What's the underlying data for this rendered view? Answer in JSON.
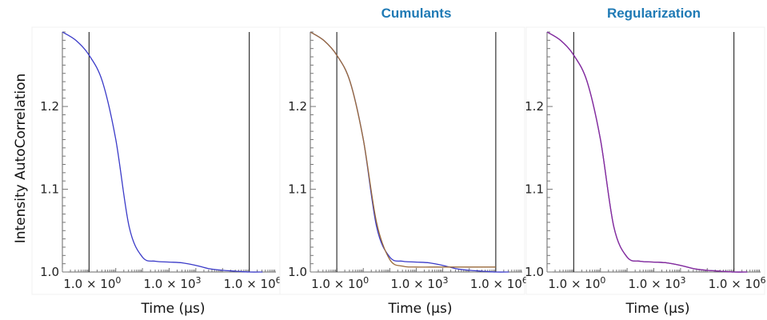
{
  "ylabel": "Intensity AutoCorrelation",
  "colors": {
    "raw": "#3a3ac8",
    "cumulants": "#9a6a3a",
    "regularization": "#8a2a9a",
    "title": "#1f7ab5"
  },
  "chart_data": [
    {
      "type": "line",
      "title": "",
      "xlabel": "Time (µs)",
      "ylabel": "Intensity AutoCorrelation",
      "xscale": "log",
      "xlim": [
        0.1,
        10000000.0
      ],
      "ylim": [
        1.0,
        1.29
      ],
      "yticks": [
        1.0,
        1.1,
        1.2
      ],
      "xticks": [
        1,
        1000,
        1000000
      ],
      "xtick_labels": [
        {
          "base": "1.0 × 10",
          "exp": "0"
        },
        {
          "base": "1.0 × 10",
          "exp": "3"
        },
        {
          "base": "1.0 × 10",
          "exp": "6"
        }
      ],
      "vlines": [
        1.0,
        1000000
      ],
      "series": [
        {
          "role": "raw",
          "x": [
            0.1,
            0.316,
            1,
            3.16,
            10,
            31.6,
            100,
            316,
            1000,
            3160,
            10000,
            31600,
            100000,
            316000,
            1000000,
            3160000
          ],
          "y": [
            1.29,
            1.28,
            1.262,
            1.23,
            1.16,
            1.055,
            1.018,
            1.013,
            1.012,
            1.011,
            1.008,
            1.004,
            1.002,
            1.001,
            1.0,
            1.0
          ]
        }
      ]
    },
    {
      "type": "line",
      "title": "Cumulants",
      "xlabel": "Time (µs)",
      "ylabel": "",
      "xscale": "log",
      "xlim": [
        0.1,
        10000000.0
      ],
      "ylim": [
        1.0,
        1.29
      ],
      "yticks": [
        1.0,
        1.1,
        1.2
      ],
      "xticks": [
        1,
        1000,
        1000000
      ],
      "xtick_labels": [
        {
          "base": "1.0 × 10",
          "exp": "0"
        },
        {
          "base": "1.0 × 10",
          "exp": "3"
        },
        {
          "base": "1.0 × 10",
          "exp": "6"
        }
      ],
      "vlines": [
        1.0,
        1000000
      ],
      "series": [
        {
          "role": "raw",
          "x": [
            0.1,
            0.316,
            1,
            3.16,
            10,
            31.6,
            100,
            316,
            1000,
            3160,
            10000,
            31600,
            100000,
            316000,
            1000000,
            3160000
          ],
          "y": [
            1.29,
            1.28,
            1.262,
            1.23,
            1.16,
            1.055,
            1.018,
            1.013,
            1.012,
            1.011,
            1.008,
            1.004,
            1.002,
            1.001,
            1.0,
            1.0
          ]
        },
        {
          "role": "cumulants",
          "x": [
            0.1,
            0.316,
            1,
            3.16,
            10,
            31.6,
            100,
            316,
            1000,
            3160,
            10000,
            31600,
            100000,
            316000,
            1000000
          ],
          "y": [
            1.29,
            1.28,
            1.262,
            1.23,
            1.16,
            1.06,
            1.015,
            1.007,
            1.006,
            1.006,
            1.006,
            1.006,
            1.006,
            1.006,
            1.006
          ]
        }
      ]
    },
    {
      "type": "line",
      "title": "Regularization",
      "xlabel": "Time (µs)",
      "ylabel": "",
      "xscale": "log",
      "xlim": [
        0.1,
        10000000.0
      ],
      "ylim": [
        1.0,
        1.29
      ],
      "yticks": [
        1.0,
        1.1,
        1.2
      ],
      "xticks": [
        1,
        1000,
        1000000
      ],
      "xtick_labels": [
        {
          "base": "1.0 × 10",
          "exp": "0"
        },
        {
          "base": "1.0 × 10",
          "exp": "3"
        },
        {
          "base": "1.0 × 10",
          "exp": "6"
        }
      ],
      "vlines": [
        1.0,
        1000000
      ],
      "series": [
        {
          "role": "raw",
          "x": [
            0.1,
            0.316,
            1,
            3.16,
            10,
            31.6,
            100,
            316,
            1000,
            3160,
            10000,
            31600,
            100000,
            316000,
            1000000,
            3160000
          ],
          "y": [
            1.29,
            1.28,
            1.262,
            1.23,
            1.16,
            1.055,
            1.018,
            1.013,
            1.012,
            1.011,
            1.008,
            1.004,
            1.002,
            1.001,
            1.0,
            1.0
          ]
        },
        {
          "role": "regularization",
          "x": [
            0.1,
            0.316,
            1,
            3.16,
            10,
            31.6,
            100,
            316,
            1000,
            3160,
            10000,
            31600,
            100000,
            316000,
            1000000,
            3160000
          ],
          "y": [
            1.29,
            1.28,
            1.262,
            1.23,
            1.16,
            1.055,
            1.018,
            1.013,
            1.012,
            1.011,
            1.008,
            1.004,
            1.002,
            1.001,
            1.0,
            1.0
          ]
        }
      ]
    }
  ]
}
